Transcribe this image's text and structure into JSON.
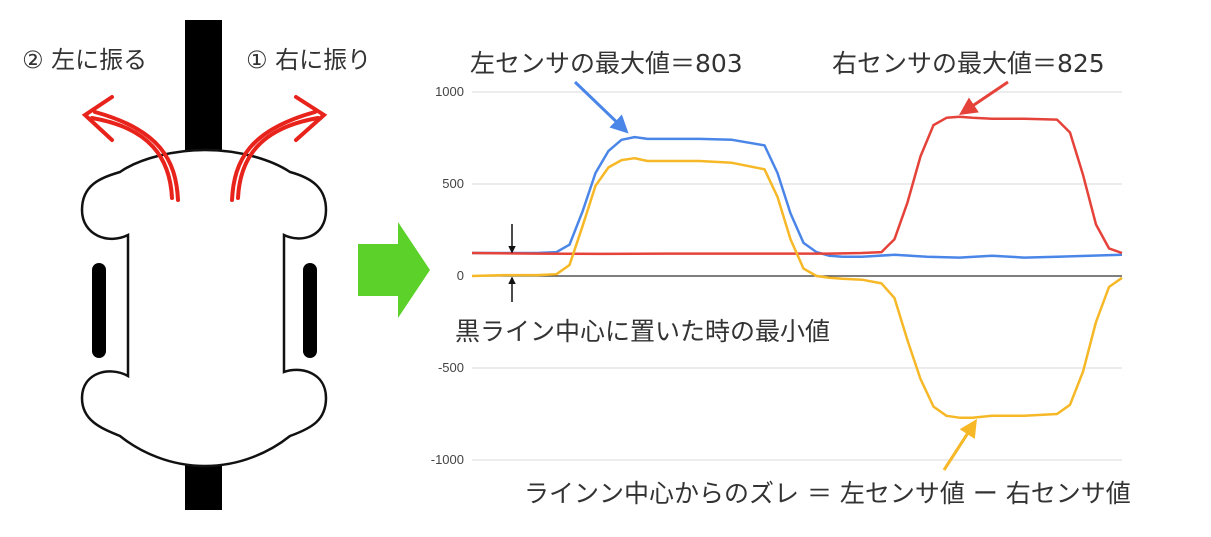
{
  "robot": {
    "label_left_turn": "② 左に振る",
    "label_right_turn": "① 右に振り"
  },
  "annotations": {
    "left_max": "左センサの最大値＝803",
    "right_max": "右センサの最大値＝825",
    "min_center": "黒ライン中心に置いた時の最小値",
    "deviation_formula": "ラインン中心からのズレ ＝ 左センサ値 ー 右センサ値"
  },
  "colors": {
    "left_sensor": "#4a86e8",
    "right_sensor": "#e5433a",
    "deviation": "#f6b826",
    "turn_arrow": "#e8231b",
    "transition_arrow": "#5cd12a"
  },
  "chart_data": {
    "type": "line",
    "ylim": [
      -1000,
      1000
    ],
    "yticks": [
      1000,
      500,
      0,
      -500,
      -1000
    ],
    "xlim": [
      0,
      100
    ],
    "grid": true,
    "series": [
      {
        "key": "left",
        "x": [
          0,
          5,
          10,
          13,
          15,
          17,
          19,
          21,
          23,
          25,
          27,
          30,
          35,
          40,
          45,
          47,
          49,
          51,
          53,
          55,
          57,
          60,
          65,
          70,
          75,
          80,
          85,
          90,
          95,
          100
        ],
        "values": [
          125,
          125,
          125,
          130,
          170,
          350,
          560,
          680,
          740,
          755,
          745,
          745,
          745,
          740,
          710,
          560,
          340,
          180,
          130,
          110,
          105,
          105,
          115,
          105,
          100,
          110,
          100,
          105,
          110,
          115
        ]
      },
      {
        "key": "right",
        "x": [
          0,
          10,
          20,
          30,
          40,
          50,
          55,
          60,
          63,
          65,
          67,
          69,
          71,
          73,
          75,
          77,
          80,
          85,
          90,
          92,
          94,
          96,
          98,
          100
        ],
        "values": [
          125,
          122,
          120,
          122,
          122,
          122,
          122,
          125,
          130,
          200,
          400,
          650,
          820,
          860,
          865,
          860,
          855,
          855,
          850,
          780,
          550,
          280,
          150,
          125
        ]
      },
      {
        "key": "deviation",
        "x": [
          0,
          5,
          10,
          13,
          15,
          17,
          19,
          21,
          23,
          25,
          27,
          30,
          35,
          40,
          45,
          47,
          49,
          51,
          53,
          55,
          57,
          60,
          63,
          65,
          67,
          69,
          71,
          73,
          75,
          77,
          80,
          85,
          90,
          92,
          94,
          96,
          98,
          100
        ],
        "values": [
          0,
          5,
          5,
          10,
          60,
          270,
          490,
          590,
          630,
          640,
          625,
          625,
          625,
          615,
          580,
          430,
          200,
          40,
          0,
          -10,
          -15,
          -20,
          -40,
          -120,
          -350,
          -560,
          -710,
          -760,
          -770,
          -770,
          -760,
          -760,
          -750,
          -700,
          -520,
          -250,
          -60,
          -10
        ]
      }
    ]
  }
}
